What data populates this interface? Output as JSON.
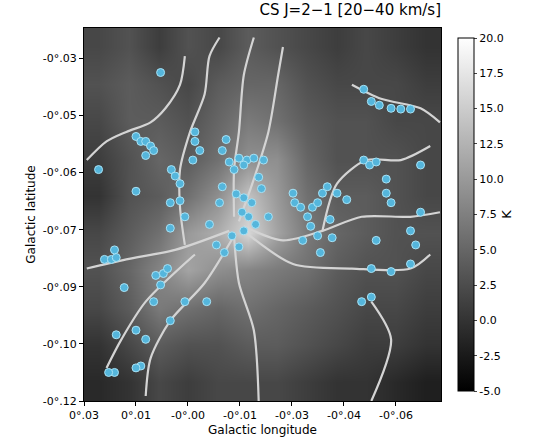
{
  "chart_data": {
    "type": "heatmap",
    "title": "CS J=2−1 [20−40 km/s]",
    "x_label": "Galactic longitude",
    "y_label": "Galactic latitude",
    "xlim": [
      0.03,
      -0.073
    ],
    "ylim": [
      -0.12,
      -0.022
    ],
    "xticks": [
      {
        "value": 0.03,
        "label": "0°.03"
      },
      {
        "value": 0.015,
        "label": "0°.01"
      },
      {
        "value": 0,
        "label": "-0°.00"
      },
      {
        "value": -0.015,
        "label": "-0°.01"
      },
      {
        "value": -0.03,
        "label": "-0°.03"
      },
      {
        "value": -0.045,
        "label": "-0°.04"
      },
      {
        "value": -0.06,
        "label": "-0°.06"
      }
    ],
    "yticks": [
      {
        "value": -0.03,
        "label": "-0°.03"
      },
      {
        "value": -0.045,
        "label": "-0°.05"
      },
      {
        "value": -0.06,
        "label": "-0°.06"
      },
      {
        "value": -0.075,
        "label": "-0°.07"
      },
      {
        "value": -0.09,
        "label": "-0°.09"
      },
      {
        "value": -0.105,
        "label": "-0°.10"
      },
      {
        "value": -0.12,
        "label": "-0°.12"
      }
    ],
    "grid": false,
    "heatmap": {
      "x": [
        0.0257,
        0.0171,
        0.0085,
        -0.0001,
        -0.0087,
        -0.0172,
        -0.0258,
        -0.0344,
        -0.043,
        -0.0515,
        -0.0601,
        -0.0687
      ],
      "y": [
        -0.0269,
        -0.0367,
        -0.0465,
        -0.0563,
        -0.0661,
        -0.0759,
        -0.0857,
        -0.0955,
        -0.1053,
        -0.1151
      ],
      "z": [
        [
          2,
          3,
          1,
          3,
          2,
          4,
          3,
          2,
          1,
          2,
          1,
          0
        ],
        [
          3,
          4,
          3,
          2,
          4,
          5,
          5,
          3,
          2,
          2,
          2,
          1
        ],
        [
          2,
          4,
          4,
          3,
          5,
          7,
          6,
          4,
          3,
          3,
          2,
          2
        ],
        [
          1,
          3,
          5,
          4,
          6,
          9,
          9,
          5,
          3,
          3,
          3,
          2
        ],
        [
          0,
          3,
          4,
          6,
          9,
          14,
          10,
          6,
          4,
          4,
          3,
          2
        ],
        [
          2,
          4,
          6,
          10,
          12,
          16,
          11,
          7,
          5,
          4,
          3,
          3
        ],
        [
          3,
          5,
          8,
          11,
          9,
          8,
          7,
          6,
          4,
          3,
          3,
          2
        ],
        [
          2,
          4,
          7,
          6,
          5,
          6,
          5,
          4,
          3,
          2,
          2,
          1
        ],
        [
          0,
          2,
          4,
          3,
          3,
          4,
          4,
          3,
          2,
          1,
          1,
          0
        ],
        [
          -1,
          0,
          2,
          1,
          2,
          2,
          2,
          1,
          0,
          0,
          -1,
          -2
        ]
      ]
    },
    "zlim": [
      -5,
      20
    ],
    "zticks": [
      {
        "value": -5,
        "label": "-5.0"
      },
      {
        "value": -2.5,
        "label": "-2.5"
      },
      {
        "value": 0,
        "label": "0.0"
      },
      {
        "value": 2.5,
        "label": "2.5"
      },
      {
        "value": 5,
        "label": "5.0"
      },
      {
        "value": 7.5,
        "label": "7.5"
      },
      {
        "value": 10,
        "label": "10.0"
      },
      {
        "value": 12.5,
        "label": "12.5"
      },
      {
        "value": 15,
        "label": "15.0"
      },
      {
        "value": 17.5,
        "label": "17.5"
      },
      {
        "value": 20,
        "label": "20.0"
      }
    ],
    "colorbar_title": "K",
    "filaments": {
      "type": "line",
      "color": "#d4d4d4",
      "lines": [
        {
          "x": [
            0.0292,
            0.0235,
            0.0178,
            0.0108,
            0.0065,
            0.0023,
            0.0009
          ],
          "y": [
            -0.0567,
            -0.0518,
            -0.0493,
            -0.0468,
            -0.0431,
            -0.0369,
            -0.0294
          ]
        },
        {
          "x": [
            0.0009,
            0.0023,
            0.0023,
            -0.0006,
            -0.0048,
            -0.0062,
            -0.0091
          ],
          "y": [
            -0.079,
            -0.0691,
            -0.0592,
            -0.0493,
            -0.0394,
            -0.0294,
            -0.0245
          ]
        },
        {
          "x": [
            -0.0133,
            -0.0133,
            -0.0147,
            -0.0161,
            -0.019
          ],
          "y": [
            -0.0716,
            -0.0592,
            -0.0493,
            -0.0344,
            -0.0245
          ]
        },
        {
          "x": [
            -0.0147,
            -0.019,
            -0.0232,
            -0.026,
            -0.0274
          ],
          "y": [
            -0.0728,
            -0.0617,
            -0.0493,
            -0.0344,
            -0.027
          ]
        },
        {
          "x": [
            -0.0161,
            -0.0274,
            -0.0388,
            -0.0501,
            -0.0642,
            -0.0727
          ],
          "y": [
            -0.0741,
            -0.0778,
            -0.0753,
            -0.0716,
            -0.0716,
            -0.0704
          ]
        },
        {
          "x": [
            -0.0388,
            -0.043,
            -0.0515,
            -0.0614,
            -0.0699
          ],
          "y": [
            -0.0753,
            -0.0629,
            -0.0567,
            -0.0567,
            -0.053
          ]
        },
        {
          "x": [
            -0.0161,
            -0.0303,
            -0.0473,
            -0.0642,
            -0.0699
          ],
          "y": [
            -0.0753,
            -0.084,
            -0.0852,
            -0.0852,
            -0.0815
          ]
        },
        {
          "x": [
            -0.0133,
            -0.0147,
            -0.019,
            -0.0204
          ],
          "y": [
            -0.0766,
            -0.089,
            -0.1014,
            -0.12
          ]
        },
        {
          "x": [
            -0.0133,
            -0.0048,
            0.0051,
            0.0108,
            0.0122
          ],
          "y": [
            -0.0766,
            -0.089,
            -0.0989,
            -0.1088,
            -0.1187
          ]
        },
        {
          "x": [
            -0.0119,
            0.0037,
            0.0178,
            0.0292
          ],
          "y": [
            -0.0753,
            -0.0803,
            -0.0828,
            -0.0852
          ]
        },
        {
          "x": [
            -0.002,
            0.0122,
            0.0192,
            0.0235
          ],
          "y": [
            -0.0815,
            -0.0939,
            -0.1038,
            -0.1113
          ]
        },
        {
          "x": [
            -0.0473,
            -0.0557,
            -0.0671,
            -0.0727
          ],
          "y": [
            -0.0369,
            -0.0406,
            -0.0431,
            -0.0468
          ]
        },
        {
          "x": [
            -0.0529,
            -0.0586,
            -0.0529
          ],
          "y": [
            -0.12,
            -0.1038,
            -0.0939
          ]
        }
      ]
    },
    "sources": {
      "type": "scatter",
      "marker": "circle",
      "color": "#55b6dc",
      "x": [
        0.015,
        0.0136,
        0.0122,
        0.0108,
        0.0122,
        0.0099,
        0.0258,
        0.015,
        0.0241,
        0.0221,
        0.0207,
        0.0212,
        0.0079,
        0.0048,
        0.0037,
        0.0023,
        0.0051,
        0.0023,
        0.0009,
        0.0051,
        -0.002,
        -0.002,
        -0.0034,
        -0.0014,
        0.0093,
        0.0071,
        0.0059,
        0.0079,
        0.0099,
        0.0009,
        -0.0054,
        0.0051,
        0.015,
        0.0122,
        0.0136,
        0.015,
        -0.011,
        -0.0099,
        -0.0119,
        -0.0147,
        -0.017,
        -0.019,
        -0.0161,
        -0.0133,
        -0.0099,
        -0.0139,
        -0.0161,
        -0.0184,
        -0.0156,
        -0.0175,
        -0.0195,
        -0.0161,
        -0.0127,
        -0.0204,
        -0.0218,
        -0.0212,
        -0.0232,
        -0.0147,
        -0.0105,
        -0.0091,
        -0.0062,
        -0.0082,
        -0.0303,
        -0.0308,
        -0.0325,
        -0.0345,
        -0.0359,
        -0.0374,
        -0.0354,
        -0.0374,
        -0.0331,
        -0.0388,
        -0.0402,
        -0.043,
        -0.0458,
        -0.041,
        -0.0416,
        -0.0382,
        -0.0507,
        -0.0524,
        -0.0543,
        -0.0572,
        -0.0572,
        -0.0586,
        -0.0671,
        -0.0671,
        -0.0642,
        -0.0657,
        -0.0543,
        -0.0529,
        -0.0586,
        -0.0642,
        -0.0501,
        -0.0529,
        -0.0507,
        -0.0529,
        -0.0552,
        -0.0586,
        -0.0614,
        -0.0642,
        0.0184,
        0.0212,
        0.0229,
        0.0207
      ],
      "y": [
        -0.0505,
        -0.0518,
        -0.0518,
        -0.053,
        -0.0555,
        -0.0542,
        -0.0592,
        -0.0649,
        -0.0828,
        -0.0828,
        -0.0823,
        -0.0803,
        -0.0337,
        -0.0592,
        -0.0609,
        -0.0629,
        -0.0679,
        -0.0674,
        -0.0716,
        -0.0746,
        -0.0493,
        -0.0518,
        -0.0542,
        -0.0567,
        -0.087,
        -0.0865,
        -0.0852,
        -0.0895,
        -0.0939,
        -0.0939,
        -0.0939,
        -0.0989,
        -0.1014,
        -0.1038,
        -0.1108,
        -0.1113,
        -0.0513,
        -0.0542,
        -0.0572,
        -0.0562,
        -0.0567,
        -0.0562,
        -0.058,
        -0.0592,
        -0.0637,
        -0.0656,
        -0.0666,
        -0.0679,
        -0.0704,
        -0.0716,
        -0.0736,
        -0.0753,
        -0.0766,
        -0.0612,
        -0.0567,
        -0.0642,
        -0.0716,
        -0.0795,
        -0.081,
        -0.0679,
        -0.0736,
        -0.079,
        -0.0654,
        -0.0679,
        -0.0691,
        -0.0716,
        -0.0691,
        -0.0679,
        -0.0741,
        -0.0766,
        -0.0778,
        -0.0654,
        -0.0637,
        -0.0654,
        -0.0671,
        -0.0723,
        -0.0771,
        -0.081,
        -0.0567,
        -0.058,
        -0.0572,
        -0.0617,
        -0.0654,
        -0.0679,
        -0.058,
        -0.0704,
        -0.0753,
        -0.079,
        -0.0778,
        -0.0852,
        -0.086,
        -0.084,
        -0.0939,
        -0.0927,
        -0.0381,
        -0.0413,
        -0.0423,
        -0.0431,
        -0.0433,
        -0.0433,
        -0.0902,
        -0.1125,
        -0.1125,
        -0.1026
      ]
    }
  }
}
